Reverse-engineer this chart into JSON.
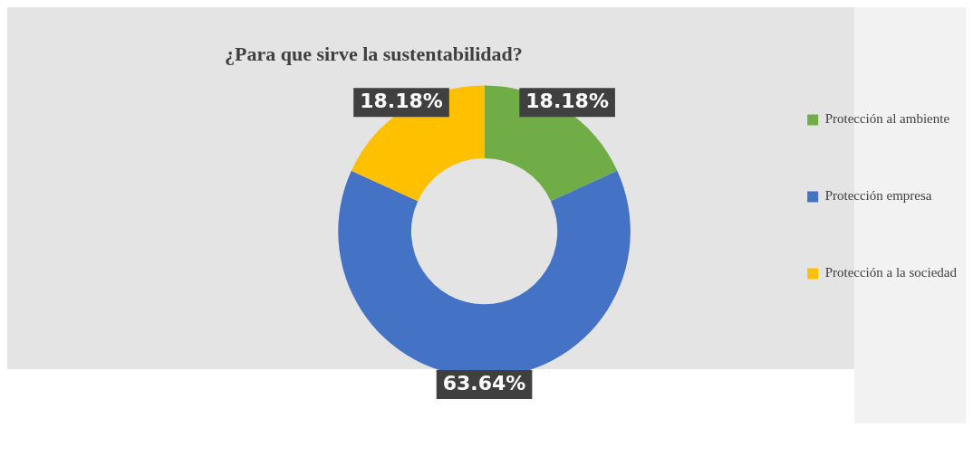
{
  "chart_data": {
    "type": "donut",
    "title": "¿Para que sirve la sustentabilidad?",
    "categories": [
      "Protección al ambiente",
      "Protección empresa",
      "Protección a la sociedad"
    ],
    "values": [
      18.18,
      63.64,
      18.18
    ],
    "colors": [
      "#70ad47",
      "#4472c4",
      "#ffc000"
    ],
    "value_labels": [
      "18.18%",
      "63.64%",
      "18.18%"
    ],
    "legend": "right"
  }
}
